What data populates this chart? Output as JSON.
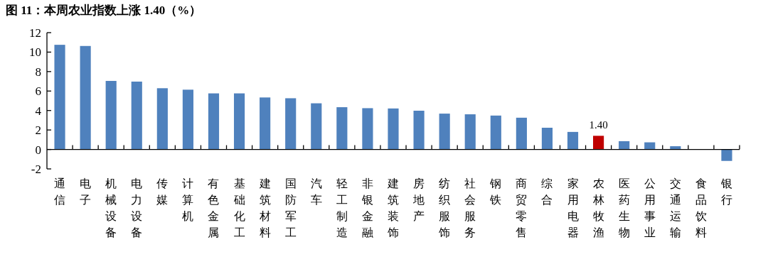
{
  "chart_data": {
    "type": "bar",
    "title": "图 11：本周农业指数上涨 1.40（%）",
    "categories": [
      "通信",
      "电子",
      "机械设备",
      "电力设备",
      "传媒",
      "计算机",
      "有色金属",
      "基础化工",
      "建筑材料",
      "国防军工",
      "汽车",
      "轻工制造",
      "非银金融",
      "建筑装饰",
      "房地产",
      "纺织服饰",
      "社会服务",
      "钢铁",
      "商贸零售",
      "综合",
      "家用电器",
      "农林牧渔",
      "医药生物",
      "公用事业",
      "交通运输",
      "食品饮料",
      "银行"
    ],
    "values": [
      10.75,
      10.63,
      7.04,
      6.97,
      6.29,
      6.14,
      5.76,
      5.76,
      5.34,
      5.26,
      4.74,
      4.34,
      4.24,
      4.21,
      3.98,
      3.68,
      3.61,
      3.48,
      3.26,
      2.23,
      1.8,
      1.4,
      0.85,
      0.73,
      0.33,
      0.0,
      -1.18
    ],
    "colors": [
      "#4f81bd",
      "#4f81bd",
      "#4f81bd",
      "#4f81bd",
      "#4f81bd",
      "#4f81bd",
      "#4f81bd",
      "#4f81bd",
      "#4f81bd",
      "#4f81bd",
      "#4f81bd",
      "#4f81bd",
      "#4f81bd",
      "#4f81bd",
      "#4f81bd",
      "#4f81bd",
      "#4f81bd",
      "#4f81bd",
      "#4f81bd",
      "#4f81bd",
      "#4f81bd",
      "#c00000",
      "#4f81bd",
      "#4f81bd",
      "#4f81bd",
      "#4f81bd",
      "#4f81bd"
    ],
    "value_labels": [
      null,
      null,
      null,
      null,
      null,
      null,
      null,
      null,
      null,
      null,
      null,
      null,
      null,
      null,
      null,
      null,
      null,
      null,
      null,
      null,
      null,
      "1.40",
      null,
      null,
      null,
      null,
      null
    ],
    "ylim": [
      -2,
      12
    ],
    "yticks": [
      -2,
      0,
      2,
      4,
      6,
      8,
      10,
      12
    ]
  }
}
